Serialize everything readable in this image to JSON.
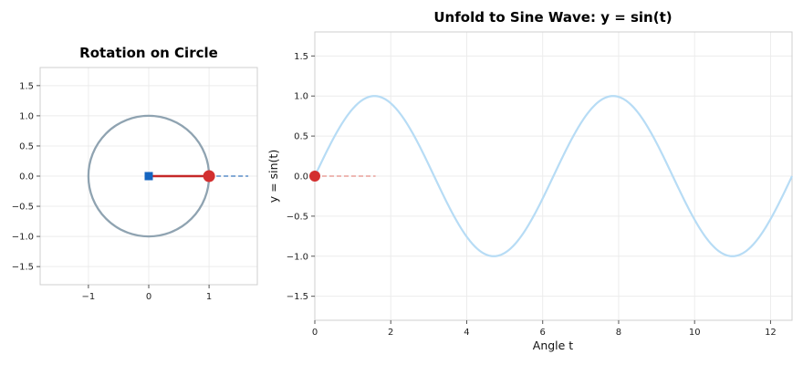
{
  "colors": {
    "circle": "#8fa3b1",
    "radius": "#c62828",
    "moving_point": "#d32f2f",
    "center": "#1565c0",
    "projection_dash": "#5b8ec9",
    "sine_curve": "#b7dcf5",
    "trace_dash": "#e8a09a"
  },
  "chart_data": [
    {
      "type": "scatter",
      "title": "Rotation on Circle",
      "xlabel": "",
      "ylabel": "",
      "xlim": [
        -1.8,
        1.8
      ],
      "ylim": [
        -1.8,
        1.8
      ],
      "xticks": [
        -1,
        0,
        1
      ],
      "yticks": [
        -1.5,
        -1.0,
        -0.5,
        0.0,
        0.5,
        1.0,
        1.5
      ],
      "xtick_labels": [
        "−1",
        "0",
        "1"
      ],
      "ytick_labels": [
        "−1.5",
        "−1.0",
        "−0.5",
        "0.0",
        "0.5",
        "1.0",
        "1.5"
      ],
      "grid": true,
      "unit_circle": {
        "center": [
          0,
          0
        ],
        "radius": 1
      },
      "center_point": {
        "x": 0,
        "y": 0
      },
      "radius_line": {
        "from": [
          0,
          0
        ],
        "to": [
          1,
          0
        ]
      },
      "moving_point": {
        "x": 1,
        "y": 0
      },
      "projection_line": {
        "from": [
          1,
          0
        ],
        "to": [
          1.65,
          0
        ]
      }
    },
    {
      "type": "line",
      "title": "Unfold to Sine Wave: y = sin(t)",
      "xlabel": "Angle t",
      "ylabel": "y = sin(t)",
      "xlim": [
        0,
        12.566
      ],
      "ylim": [
        -1.8,
        1.8
      ],
      "xticks": [
        0,
        2,
        4,
        6,
        8,
        10,
        12
      ],
      "yticks": [
        -1.5,
        -1.0,
        -0.5,
        0.0,
        0.5,
        1.0,
        1.5
      ],
      "xtick_labels": [
        "0",
        "2",
        "4",
        "6",
        "8",
        "10",
        "12"
      ],
      "ytick_labels": [
        "−1.5",
        "−1.0",
        "−0.5",
        "0.0",
        "0.5",
        "1.0",
        "1.5"
      ],
      "grid": true,
      "series": [
        {
          "function": "sin",
          "x_range": [
            0,
            12.566
          ]
        }
      ],
      "current_point": {
        "x": 0,
        "y": 0
      },
      "trace_line": {
        "from": [
          0,
          0
        ],
        "to": [
          1.6,
          0
        ]
      }
    }
  ]
}
